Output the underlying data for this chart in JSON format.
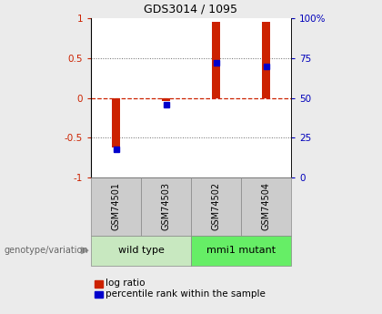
{
  "title": "GDS3014 / 1095",
  "samples": [
    "GSM74501",
    "GSM74503",
    "GSM74502",
    "GSM74504"
  ],
  "log_ratios": [
    -0.62,
    -0.04,
    0.95,
    0.95
  ],
  "percentile_ranks": [
    18,
    46,
    72,
    70
  ],
  "groups_info": [
    {
      "name": "wild type",
      "start": 0,
      "end": 2,
      "color": "#c8e8c0"
    },
    {
      "name": "mmi1 mutant",
      "start": 2,
      "end": 4,
      "color": "#66ee66"
    }
  ],
  "bar_color_red": "#cc2200",
  "bar_color_blue": "#0000cc",
  "left_axis_color": "#cc2200",
  "right_axis_color": "#0000bb",
  "ylim_left": [
    -1,
    1
  ],
  "ylim_right": [
    0,
    100
  ],
  "yticks_left": [
    -1,
    -0.5,
    0,
    0.5,
    1
  ],
  "ytick_labels_left": [
    "-1",
    "-0.5",
    "0",
    "0.5",
    "1"
  ],
  "yticks_right": [
    0,
    25,
    50,
    75,
    100
  ],
  "ytick_labels_right": [
    "0",
    "25",
    "50",
    "75",
    "100%"
  ],
  "hline_color": "#cc2200",
  "dotted_color": "#666666",
  "bg_color": "#ebebeb",
  "plot_bg": "#ffffff",
  "legend_red_label": "log ratio",
  "legend_blue_label": "percentile rank within the sample",
  "genotype_label": "genotype/variation",
  "bar_width": 0.18,
  "blue_marker_size": 5
}
